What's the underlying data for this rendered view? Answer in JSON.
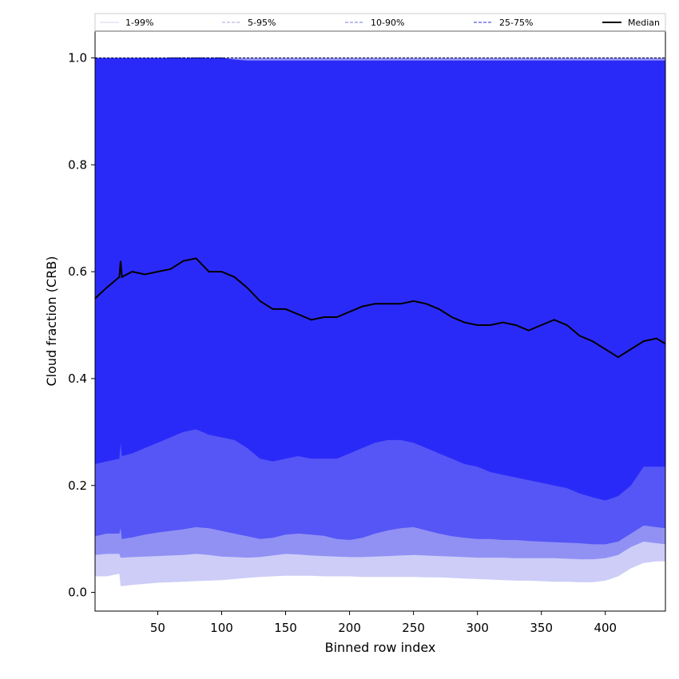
{
  "chart_data": {
    "type": "area",
    "title": "",
    "xlabel": "Binned row index",
    "ylabel": "Cloud fraction (CRB)",
    "xlim": [
      1,
      447
    ],
    "ylim": [
      -0.035,
      1.05
    ],
    "xticks": [
      50,
      100,
      150,
      200,
      250,
      300,
      350,
      400
    ],
    "yticks": [
      0.0,
      0.2,
      0.4,
      0.6,
      0.8,
      1.0
    ],
    "ytick_labels": [
      "0.0",
      "0.2",
      "0.4",
      "0.6",
      "0.8",
      "1.0"
    ],
    "grid": false,
    "legend": {
      "position": "top",
      "entries": [
        {
          "name": "1-99%",
          "color": "#dcdcf4",
          "style": "solid"
        },
        {
          "name": "5-95%",
          "color": "#b8b8e8",
          "style": "dashed"
        },
        {
          "name": "10-90%",
          "color": "#9090f0",
          "style": "dashed"
        },
        {
          "name": "25-75%",
          "color": "#5555ee",
          "style": "dashed"
        },
        {
          "name": "Median",
          "color": "#000000",
          "style": "solid"
        }
      ]
    },
    "x": [
      1,
      10,
      20,
      21,
      22,
      30,
      40,
      50,
      60,
      70,
      80,
      90,
      100,
      110,
      120,
      130,
      140,
      150,
      160,
      170,
      180,
      190,
      200,
      210,
      220,
      230,
      240,
      250,
      260,
      270,
      280,
      290,
      300,
      310,
      320,
      330,
      340,
      350,
      360,
      370,
      380,
      390,
      400,
      410,
      420,
      430,
      440,
      447
    ],
    "series": [
      {
        "name": "Median",
        "values": [
          0.55,
          0.57,
          0.59,
          0.62,
          0.59,
          0.6,
          0.595,
          0.6,
          0.605,
          0.62,
          0.625,
          0.6,
          0.6,
          0.59,
          0.57,
          0.545,
          0.53,
          0.53,
          0.52,
          0.51,
          0.515,
          0.515,
          0.525,
          0.535,
          0.54,
          0.54,
          0.54,
          0.545,
          0.54,
          0.53,
          0.515,
          0.505,
          0.5,
          0.5,
          0.505,
          0.5,
          0.49,
          0.5,
          0.51,
          0.5,
          0.48,
          0.47,
          0.455,
          0.44,
          0.455,
          0.47,
          0.475,
          0.465
        ]
      },
      {
        "name": "1-99%",
        "values": [
          [
            0.03,
            1.0
          ],
          [
            0.03,
            1.0
          ],
          [
            0.035,
            1.0
          ],
          [
            0.012,
            1.0
          ],
          [
            0.012,
            1.0
          ],
          [
            0.014,
            1.0
          ],
          [
            0.016,
            1.0
          ],
          [
            0.018,
            1.0
          ],
          [
            0.019,
            1.0
          ],
          [
            0.02,
            1.0
          ],
          [
            0.021,
            1.0
          ],
          [
            0.022,
            1.0
          ],
          [
            0.023,
            1.0
          ],
          [
            0.025,
            1.0
          ],
          [
            0.027,
            1.0
          ],
          [
            0.029,
            1.0
          ],
          [
            0.03,
            1.0
          ],
          [
            0.031,
            1.0
          ],
          [
            0.031,
            1.0
          ],
          [
            0.031,
            1.0
          ],
          [
            0.03,
            1.0
          ],
          [
            0.03,
            1.0
          ],
          [
            0.03,
            1.0
          ],
          [
            0.029,
            1.0
          ],
          [
            0.029,
            1.0
          ],
          [
            0.029,
            1.0
          ],
          [
            0.029,
            1.0
          ],
          [
            0.029,
            1.0
          ],
          [
            0.028,
            1.0
          ],
          [
            0.028,
            1.0
          ],
          [
            0.027,
            1.0
          ],
          [
            0.026,
            1.0
          ],
          [
            0.025,
            1.0
          ],
          [
            0.024,
            1.0
          ],
          [
            0.023,
            1.0
          ],
          [
            0.022,
            1.0
          ],
          [
            0.022,
            1.0
          ],
          [
            0.021,
            1.0
          ],
          [
            0.02,
            1.0
          ],
          [
            0.02,
            1.0
          ],
          [
            0.019,
            1.0
          ],
          [
            0.019,
            1.0
          ],
          [
            0.022,
            1.0
          ],
          [
            0.03,
            1.0
          ],
          [
            0.045,
            1.0
          ],
          [
            0.055,
            1.0
          ],
          [
            0.058,
            1.0
          ],
          [
            0.058,
            1.0
          ]
        ]
      },
      {
        "name": "5-95%",
        "values": [
          [
            0.07,
            1.0
          ],
          [
            0.072,
            1.0
          ],
          [
            0.072,
            1.0
          ],
          [
            0.065,
            1.0
          ],
          [
            0.065,
            1.0
          ],
          [
            0.066,
            1.0
          ],
          [
            0.067,
            1.0
          ],
          [
            0.068,
            1.0
          ],
          [
            0.069,
            1.0
          ],
          [
            0.07,
            1.0
          ],
          [
            0.072,
            1.0
          ],
          [
            0.07,
            1.0
          ],
          [
            0.067,
            1.0
          ],
          [
            0.066,
            1.0
          ],
          [
            0.065,
            1.0
          ],
          [
            0.066,
            1.0
          ],
          [
            0.069,
            1.0
          ],
          [
            0.072,
            1.0
          ],
          [
            0.071,
            1.0
          ],
          [
            0.069,
            1.0
          ],
          [
            0.068,
            1.0
          ],
          [
            0.067,
            1.0
          ],
          [
            0.066,
            1.0
          ],
          [
            0.066,
            1.0
          ],
          [
            0.067,
            1.0
          ],
          [
            0.068,
            1.0
          ],
          [
            0.069,
            1.0
          ],
          [
            0.07,
            1.0
          ],
          [
            0.069,
            1.0
          ],
          [
            0.068,
            1.0
          ],
          [
            0.067,
            1.0
          ],
          [
            0.066,
            1.0
          ],
          [
            0.065,
            1.0
          ],
          [
            0.065,
            1.0
          ],
          [
            0.065,
            1.0
          ],
          [
            0.064,
            1.0
          ],
          [
            0.064,
            1.0
          ],
          [
            0.064,
            1.0
          ],
          [
            0.064,
            1.0
          ],
          [
            0.063,
            1.0
          ],
          [
            0.062,
            1.0
          ],
          [
            0.062,
            1.0
          ],
          [
            0.064,
            1.0
          ],
          [
            0.07,
            1.0
          ],
          [
            0.085,
            1.0
          ],
          [
            0.095,
            1.0
          ],
          [
            0.092,
            1.0
          ],
          [
            0.09,
            1.0
          ]
        ]
      },
      {
        "name": "10-90%",
        "values": [
          [
            0.105,
            0.965
          ],
          [
            0.11,
            0.975
          ],
          [
            0.11,
            0.99
          ],
          [
            0.12,
            0.99
          ],
          [
            0.1,
            0.99
          ],
          [
            0.103,
            0.995
          ],
          [
            0.108,
            0.995
          ],
          [
            0.112,
            0.998
          ],
          [
            0.115,
            1.0
          ],
          [
            0.118,
            1.0
          ],
          [
            0.122,
            1.0
          ],
          [
            0.12,
            1.0
          ],
          [
            0.115,
            1.0
          ],
          [
            0.11,
            0.995
          ],
          [
            0.105,
            0.98
          ],
          [
            0.1,
            0.97
          ],
          [
            0.102,
            0.965
          ],
          [
            0.108,
            0.955
          ],
          [
            0.11,
            0.94
          ],
          [
            0.108,
            0.945
          ],
          [
            0.106,
            0.95
          ],
          [
            0.1,
            0.955
          ],
          [
            0.098,
            0.96
          ],
          [
            0.102,
            0.965
          ],
          [
            0.11,
            0.965
          ],
          [
            0.116,
            0.97
          ],
          [
            0.12,
            0.972
          ],
          [
            0.122,
            0.975
          ],
          [
            0.116,
            0.97
          ],
          [
            0.11,
            0.965
          ],
          [
            0.105,
            0.955
          ],
          [
            0.102,
            0.95
          ],
          [
            0.1,
            0.955
          ],
          [
            0.1,
            0.965
          ],
          [
            0.098,
            0.968
          ],
          [
            0.098,
            0.97
          ],
          [
            0.096,
            0.965
          ],
          [
            0.095,
            0.97
          ],
          [
            0.094,
            0.97
          ],
          [
            0.093,
            0.955
          ],
          [
            0.092,
            0.935
          ],
          [
            0.09,
            0.925
          ],
          [
            0.09,
            0.91
          ],
          [
            0.095,
            0.895
          ],
          [
            0.11,
            0.89
          ],
          [
            0.125,
            0.88
          ],
          [
            0.122,
            0.865
          ],
          [
            0.12,
            0.845
          ]
        ]
      },
      {
        "name": "25-75%",
        "values": [
          [
            0.24,
            1.0
          ],
          [
            0.245,
            1.0
          ],
          [
            0.25,
            1.0
          ],
          [
            0.28,
            1.0
          ],
          [
            0.255,
            1.0
          ],
          [
            0.26,
            1.0
          ],
          [
            0.27,
            1.0
          ],
          [
            0.28,
            1.0
          ],
          [
            0.29,
            1.0
          ],
          [
            0.3,
            1.0
          ],
          [
            0.305,
            1.0
          ],
          [
            0.295,
            1.0
          ],
          [
            0.29,
            1.0
          ],
          [
            0.285,
            0.997
          ],
          [
            0.27,
            0.995
          ],
          [
            0.25,
            0.995
          ],
          [
            0.245,
            0.995
          ],
          [
            0.25,
            0.995
          ],
          [
            0.255,
            0.995
          ],
          [
            0.25,
            0.995
          ],
          [
            0.25,
            0.995
          ],
          [
            0.25,
            0.995
          ],
          [
            0.26,
            0.995
          ],
          [
            0.27,
            0.995
          ],
          [
            0.28,
            0.995
          ],
          [
            0.285,
            0.995
          ],
          [
            0.285,
            0.995
          ],
          [
            0.28,
            0.995
          ],
          [
            0.27,
            0.995
          ],
          [
            0.26,
            0.995
          ],
          [
            0.25,
            0.995
          ],
          [
            0.24,
            0.995
          ],
          [
            0.235,
            0.995
          ],
          [
            0.225,
            0.995
          ],
          [
            0.22,
            0.995
          ],
          [
            0.215,
            0.995
          ],
          [
            0.21,
            0.995
          ],
          [
            0.205,
            0.995
          ],
          [
            0.2,
            0.995
          ],
          [
            0.195,
            0.995
          ],
          [
            0.185,
            0.995
          ],
          [
            0.178,
            0.995
          ],
          [
            0.172,
            0.995
          ],
          [
            0.18,
            0.995
          ],
          [
            0.2,
            0.995
          ],
          [
            0.235,
            0.995
          ],
          [
            0.235,
            0.995
          ],
          [
            0.235,
            0.995
          ]
        ]
      }
    ]
  }
}
